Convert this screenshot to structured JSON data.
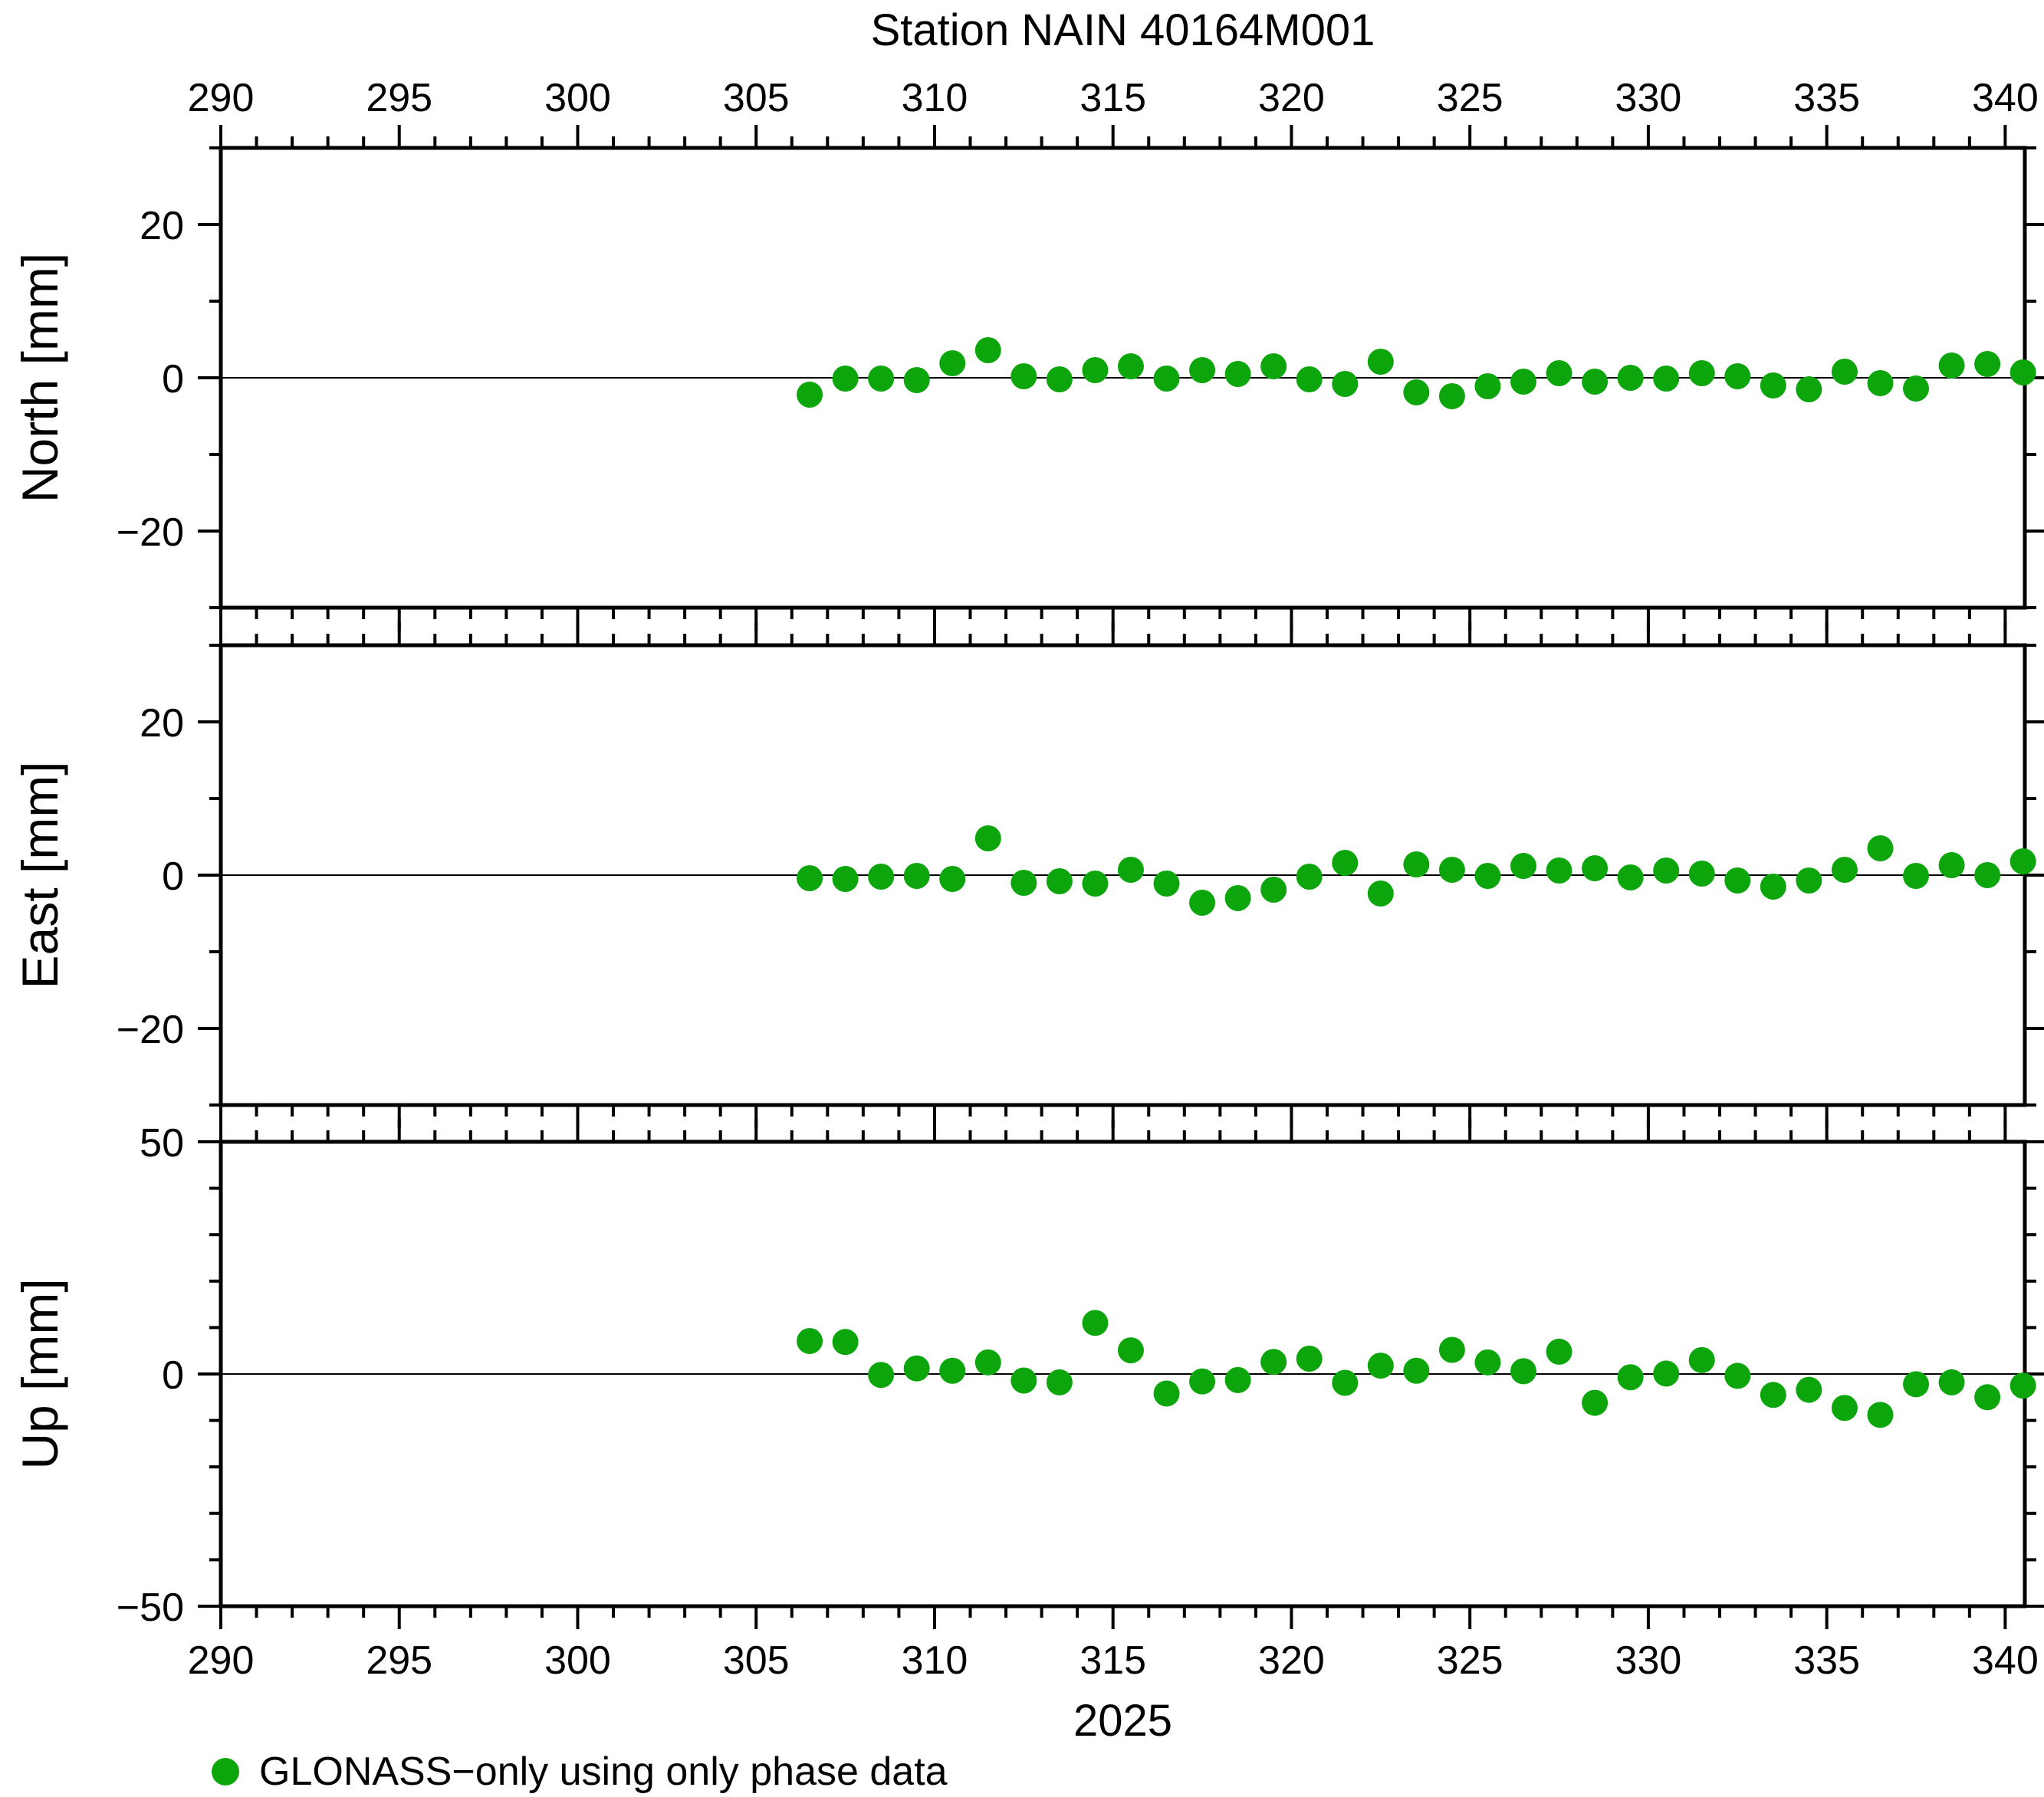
{
  "title": "Station NAIN 40164M001",
  "legend": {
    "label": "GLONASS−only using only phase data",
    "marker_color": "#0CA60C"
  },
  "colors": {
    "frame": "#000000",
    "zero_line": "#000000",
    "background": "#ffffff"
  },
  "chart_data": {
    "type": "scatter",
    "title": "Station NAIN 40164M001",
    "xlabel": "2025",
    "xlim": [
      290,
      340.55
    ],
    "x_major_ticks": [
      290,
      295,
      300,
      305,
      310,
      315,
      320,
      325,
      330,
      335,
      340
    ],
    "x_minor_step": 1,
    "grid": "zero-line-only",
    "legend_position": "bottom-left",
    "x": [
      306.5,
      307.5,
      308.5,
      309.5,
      310.5,
      311.5,
      312.5,
      313.5,
      314.5,
      315.5,
      316.5,
      317.5,
      318.5,
      319.5,
      320.5,
      321.5,
      322.5,
      323.5,
      324.5,
      325.5,
      326.5,
      327.5,
      328.5,
      329.5,
      330.5,
      331.5,
      332.5,
      333.5,
      334.5,
      335.5,
      336.5,
      337.5,
      338.5,
      339.5,
      340.5
    ],
    "panels": [
      {
        "name": "North",
        "ylabel": "North [mm]",
        "ylim": [
          -30,
          30
        ],
        "y_minor_step": 10,
        "yticks": [
          {
            "value": 20,
            "label": "20"
          },
          {
            "value": 0,
            "label": "0"
          },
          {
            "value": -20,
            "label": "−20"
          }
        ],
        "values": [
          -2.2,
          -0.1,
          -0.1,
          -0.3,
          1.9,
          3.6,
          0.2,
          -0.2,
          1.0,
          1.5,
          -0.1,
          1.0,
          0.5,
          1.5,
          -0.2,
          -0.8,
          2.1,
          -1.9,
          -2.4,
          -1.1,
          -0.5,
          0.6,
          -0.5,
          0.0,
          -0.1,
          0.6,
          0.2,
          -1.0,
          -1.5,
          0.8,
          -0.7,
          -1.4,
          1.6,
          1.8,
          0.7
        ]
      },
      {
        "name": "East",
        "ylabel": "East [mm]",
        "ylim": [
          -30,
          30
        ],
        "y_minor_step": 10,
        "yticks": [
          {
            "value": 20,
            "label": "20"
          },
          {
            "value": 0,
            "label": "0"
          },
          {
            "value": -20,
            "label": "−20"
          }
        ],
        "values": [
          -0.4,
          -0.5,
          -0.2,
          -0.1,
          -0.5,
          4.8,
          -1.0,
          -0.8,
          -1.1,
          0.7,
          -1.1,
          -3.6,
          -3.0,
          -1.9,
          -0.2,
          1.6,
          -2.4,
          1.4,
          0.7,
          -0.1,
          1.2,
          0.6,
          0.9,
          -0.3,
          0.6,
          0.2,
          -0.7,
          -1.5,
          -0.7,
          0.7,
          3.5,
          -0.1,
          1.3,
          0.0,
          1.8
        ]
      },
      {
        "name": "Up",
        "ylabel": "Up [mm]",
        "ylim": [
          -50,
          50
        ],
        "y_minor_step": 10,
        "yticks": [
          {
            "value": 50,
            "label": "50"
          },
          {
            "value": 0,
            "label": "0"
          },
          {
            "value": -50,
            "label": "−50"
          }
        ],
        "values": [
          7.1,
          6.9,
          -0.2,
          1.2,
          0.7,
          2.5,
          -1.4,
          -1.8,
          11.0,
          5.1,
          -4.2,
          -1.6,
          -1.3,
          2.6,
          3.3,
          -1.9,
          1.8,
          0.7,
          5.2,
          2.5,
          0.6,
          4.8,
          -6.2,
          -0.7,
          0.1,
          3.0,
          -0.4,
          -4.5,
          -3.4,
          -7.3,
          -8.8,
          -2.2,
          -1.8,
          -5.0,
          -2.5
        ]
      }
    ]
  }
}
